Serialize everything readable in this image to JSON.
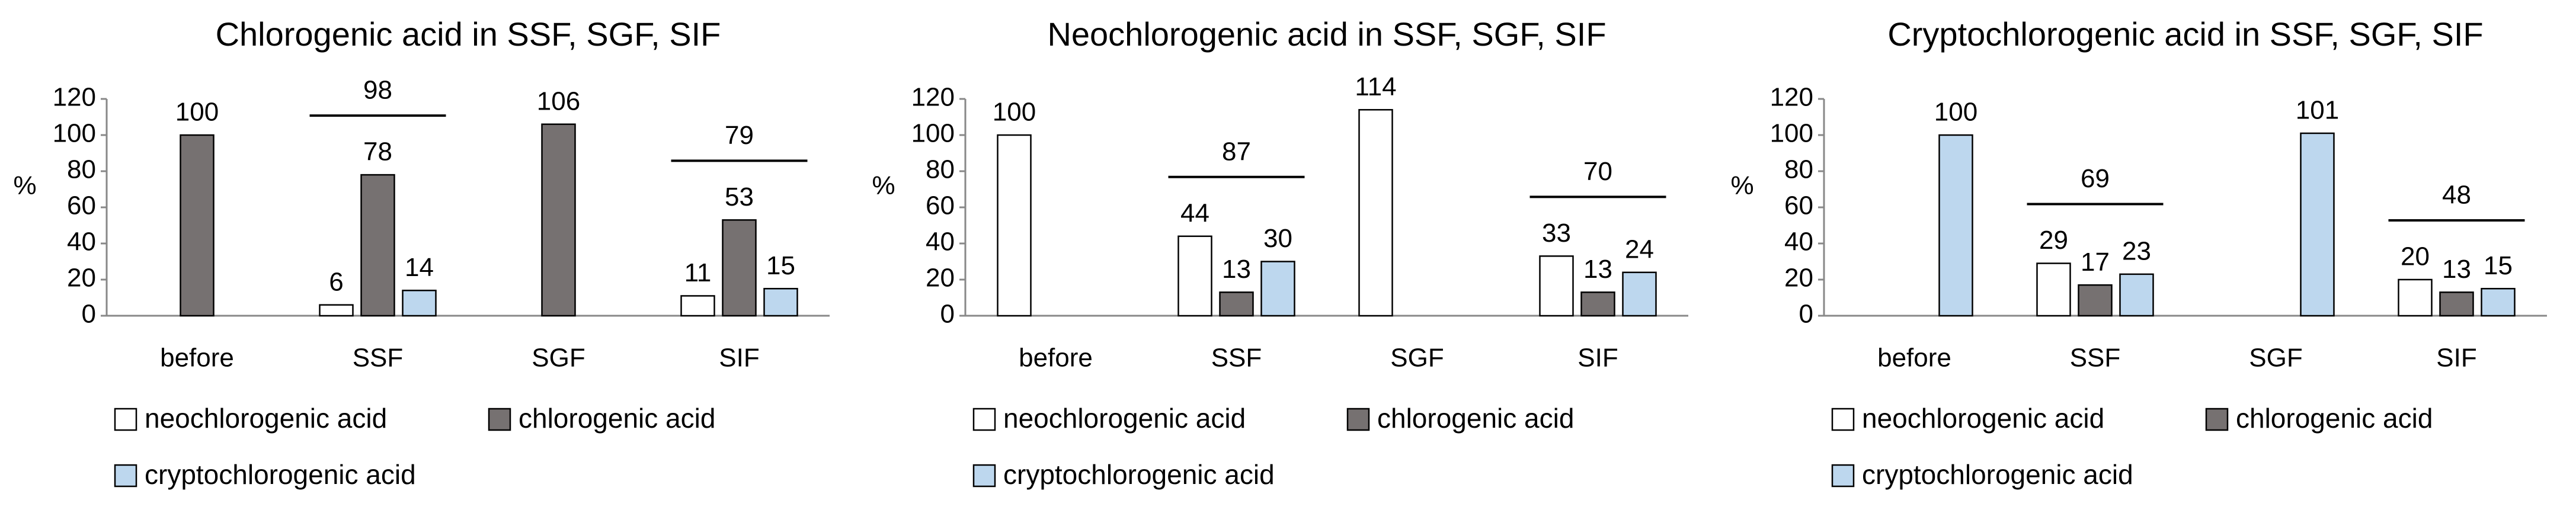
{
  "chart_data": [
    {
      "type": "bar",
      "title": "Chlorogenic acid in SSF, SGF, SIF",
      "y_label": "%",
      "categories": [
        "before",
        "SSF",
        "SGF",
        "SIF"
      ],
      "series": [
        {
          "name": "neochlorogenic acid",
          "color": "#ffffff",
          "values": [
            null,
            6,
            null,
            11
          ]
        },
        {
          "name": "chlorogenic acid",
          "color": "#767171",
          "values": [
            100,
            78,
            106,
            53
          ]
        },
        {
          "name": "cryptochlorogenic acid",
          "color": "#bdd7ee",
          "values": [
            null,
            14,
            null,
            15
          ]
        }
      ],
      "totals": [
        null,
        98,
        null,
        79
      ],
      "ylim": [
        0,
        120
      ],
      "yticks": [
        0,
        20,
        40,
        60,
        80,
        100,
        120
      ],
      "grid": false
    },
    {
      "type": "bar",
      "title": "Neochlorogenic acid in SSF, SGF, SIF",
      "y_label": "%",
      "categories": [
        "before",
        "SSF",
        "SGF",
        "SIF"
      ],
      "series": [
        {
          "name": "neochlorogenic acid",
          "color": "#ffffff",
          "values": [
            100,
            44,
            114,
            33
          ]
        },
        {
          "name": "chlorogenic acid",
          "color": "#767171",
          "values": [
            null,
            13,
            null,
            13
          ]
        },
        {
          "name": "cryptochlorogenic acid",
          "color": "#bdd7ee",
          "values": [
            null,
            30,
            null,
            24
          ]
        }
      ],
      "totals": [
        null,
        87,
        null,
        70
      ],
      "ylim": [
        0,
        120
      ],
      "yticks": [
        0,
        20,
        40,
        60,
        80,
        100,
        120
      ],
      "grid": false
    },
    {
      "type": "bar",
      "title": "Cryptochlorogenic acid in SSF, SGF, SIF",
      "y_label": "%",
      "categories": [
        "before",
        "SSF",
        "SGF",
        "SIF"
      ],
      "series": [
        {
          "name": "neochlorogenic acid",
          "color": "#ffffff",
          "values": [
            null,
            29,
            null,
            20
          ]
        },
        {
          "name": "chlorogenic acid",
          "color": "#767171",
          "values": [
            null,
            17,
            null,
            13
          ]
        },
        {
          "name": "cryptochlorogenic acid",
          "color": "#bdd7ee",
          "values": [
            100,
            23,
            101,
            15
          ]
        }
      ],
      "totals": [
        null,
        69,
        null,
        48
      ],
      "ylim": [
        0,
        120
      ],
      "yticks": [
        0,
        20,
        40,
        60,
        80,
        100,
        120
      ],
      "grid": false
    }
  ]
}
